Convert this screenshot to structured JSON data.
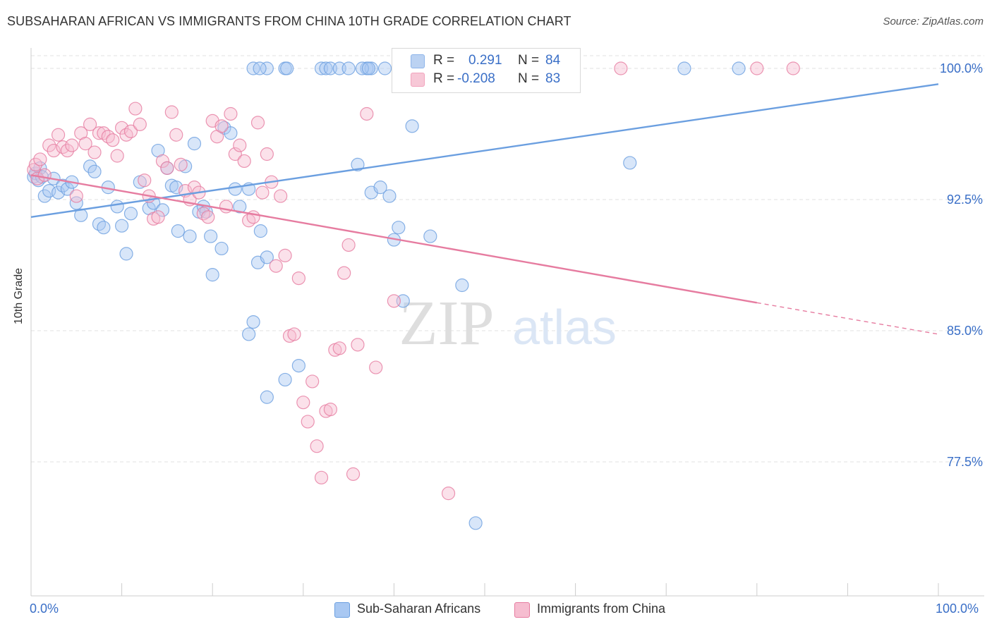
{
  "title": "SUBSAHARAN AFRICAN VS IMMIGRANTS FROM CHINA 10TH GRADE CORRELATION CHART",
  "source": "Source: ZipAtlas.com",
  "watermark": {
    "zip": "ZIP",
    "atlas": "atlas"
  },
  "legend_top": {
    "r_label": "R =",
    "n_label": "N =",
    "series": [
      {
        "r": "0.291",
        "n": "84",
        "color": "#8db4ea"
      },
      {
        "r": "-0.208",
        "n": "83",
        "color": "#f2a3bd"
      }
    ]
  },
  "chart_data": {
    "type": "scatter",
    "title": "SUBSAHARAN AFRICAN VS IMMIGRANTS FROM CHINA 10TH GRADE CORRELATION CHART",
    "xlabel": "",
    "ylabel": "10th Grade",
    "xlim": [
      0,
      100
    ],
    "ylim": [
      71.2,
      100.8
    ],
    "x_tick_labels": [
      "0.0%",
      "100.0%"
    ],
    "y_ticks": [
      {
        "value": 100.0,
        "label": "100.0%"
      },
      {
        "value": 92.5,
        "label": "92.5%"
      },
      {
        "value": 85.0,
        "label": "85.0%"
      },
      {
        "value": 77.5,
        "label": "77.5%"
      }
    ],
    "grid": true,
    "legend_position": "bottom",
    "series": [
      {
        "name": "Sub-Saharan Africans",
        "color": "#6b9fe0",
        "fill": "#a9c8f2",
        "trend": {
          "x0": 0,
          "y0": 91.5,
          "x1": 100,
          "y1": 99.1
        },
        "points": [
          [
            0.3,
            93.8
          ],
          [
            0.5,
            94.0
          ],
          [
            0.8,
            93.6
          ],
          [
            1.0,
            94.3
          ],
          [
            1.2,
            93.8
          ],
          [
            1.5,
            92.7
          ],
          [
            2.0,
            93.0
          ],
          [
            2.5,
            93.7
          ],
          [
            3.0,
            92.9
          ],
          [
            3.5,
            93.3
          ],
          [
            4.0,
            93.1
          ],
          [
            4.5,
            93.5
          ],
          [
            5.0,
            92.3
          ],
          [
            5.5,
            91.6
          ],
          [
            6.5,
            94.4
          ],
          [
            7.0,
            94.1
          ],
          [
            7.5,
            91.1
          ],
          [
            8.0,
            90.9
          ],
          [
            8.5,
            93.2
          ],
          [
            9.5,
            92.1
          ],
          [
            10.0,
            91.0
          ],
          [
            10.5,
            89.4
          ],
          [
            11.0,
            91.7
          ],
          [
            12.0,
            93.5
          ],
          [
            13.0,
            92.0
          ],
          [
            13.5,
            92.3
          ],
          [
            14.0,
            95.3
          ],
          [
            14.5,
            91.9
          ],
          [
            15.0,
            94.3
          ],
          [
            15.5,
            93.3
          ],
          [
            16.0,
            93.2
          ],
          [
            16.2,
            90.7
          ],
          [
            17.0,
            94.4
          ],
          [
            17.5,
            90.4
          ],
          [
            18.0,
            95.7
          ],
          [
            18.5,
            91.8
          ],
          [
            19.0,
            92.1
          ],
          [
            19.3,
            91.8
          ],
          [
            19.8,
            90.4
          ],
          [
            20.0,
            88.2
          ],
          [
            21.0,
            89.7
          ],
          [
            21.3,
            96.6
          ],
          [
            22.0,
            96.3
          ],
          [
            22.5,
            93.1
          ],
          [
            23.0,
            92.1
          ],
          [
            24.0,
            93.1
          ],
          [
            25.0,
            88.9
          ],
          [
            25.3,
            90.7
          ],
          [
            26.0,
            89.2
          ],
          [
            24.5,
            100.0
          ],
          [
            26.0,
            100.0
          ],
          [
            25.2,
            100.0
          ],
          [
            28.0,
            100.0
          ],
          [
            28.2,
            100.0
          ],
          [
            32.0,
            100.0
          ],
          [
            32.5,
            100.0
          ],
          [
            33.0,
            100.0
          ],
          [
            34.0,
            100.0
          ],
          [
            35.0,
            100.0
          ],
          [
            37.0,
            100.0
          ],
          [
            37.5,
            100.0
          ],
          [
            36.5,
            100.0
          ],
          [
            37.2,
            100.0
          ],
          [
            39.0,
            100.0
          ],
          [
            36.0,
            94.5
          ],
          [
            37.5,
            92.9
          ],
          [
            38.5,
            93.2
          ],
          [
            39.5,
            92.7
          ],
          [
            40.5,
            90.9
          ],
          [
            42.0,
            96.7
          ],
          [
            44.0,
            90.4
          ],
          [
            24.0,
            84.8
          ],
          [
            24.5,
            85.5
          ],
          [
            26.0,
            81.2
          ],
          [
            28.0,
            82.2
          ],
          [
            29.5,
            83.0
          ],
          [
            40.0,
            90.2
          ],
          [
            41.0,
            86.7
          ],
          [
            47.5,
            87.6
          ],
          [
            49.0,
            74.0
          ],
          [
            59.0,
            100.0
          ],
          [
            66.0,
            94.6
          ],
          [
            72.0,
            100.0
          ],
          [
            78.0,
            100.0
          ]
        ]
      },
      {
        "name": "Immigrants from China",
        "color": "#e67ca0",
        "fill": "#f6bdd0",
        "trend": {
          "x0": 0,
          "y0": 93.9,
          "x1": 80,
          "y1": 86.6,
          "dash_to_x": 100,
          "dash_to_y": 84.8
        },
        "points": [
          [
            0.3,
            94.2
          ],
          [
            0.5,
            94.5
          ],
          [
            0.7,
            93.7
          ],
          [
            1.0,
            94.8
          ],
          [
            1.5,
            93.9
          ],
          [
            2.0,
            95.6
          ],
          [
            2.5,
            95.3
          ],
          [
            3.0,
            96.2
          ],
          [
            3.5,
            95.5
          ],
          [
            4.0,
            95.3
          ],
          [
            4.5,
            95.6
          ],
          [
            5.0,
            92.7
          ],
          [
            5.5,
            96.3
          ],
          [
            6.0,
            95.7
          ],
          [
            6.5,
            96.8
          ],
          [
            7.0,
            95.2
          ],
          [
            7.5,
            96.3
          ],
          [
            8.0,
            96.3
          ],
          [
            8.5,
            96.1
          ],
          [
            9.0,
            95.9
          ],
          [
            9.5,
            95.0
          ],
          [
            10.0,
            96.6
          ],
          [
            10.5,
            96.2
          ],
          [
            11.0,
            96.4
          ],
          [
            11.5,
            97.7
          ],
          [
            12.0,
            96.8
          ],
          [
            12.5,
            93.6
          ],
          [
            13.0,
            92.7
          ],
          [
            13.5,
            91.4
          ],
          [
            14.0,
            91.5
          ],
          [
            14.5,
            94.7
          ],
          [
            15.0,
            94.3
          ],
          [
            15.5,
            97.5
          ],
          [
            16.0,
            96.2
          ],
          [
            16.5,
            94.5
          ],
          [
            17.0,
            93.0
          ],
          [
            17.5,
            92.5
          ],
          [
            18.0,
            93.2
          ],
          [
            18.5,
            92.9
          ],
          [
            19.0,
            91.7
          ],
          [
            19.5,
            91.5
          ],
          [
            20.0,
            97.0
          ],
          [
            20.5,
            96.1
          ],
          [
            21.0,
            96.7
          ],
          [
            21.5,
            92.1
          ],
          [
            22.0,
            97.4
          ],
          [
            22.5,
            95.1
          ],
          [
            23.0,
            95.6
          ],
          [
            23.5,
            94.7
          ],
          [
            24.0,
            91.3
          ],
          [
            24.5,
            91.5
          ],
          [
            25.0,
            96.9
          ],
          [
            25.5,
            92.9
          ],
          [
            26.0,
            95.1
          ],
          [
            26.5,
            93.5
          ],
          [
            27.0,
            88.7
          ],
          [
            27.5,
            92.7
          ],
          [
            28.0,
            89.3
          ],
          [
            28.5,
            84.7
          ],
          [
            29.0,
            84.8
          ],
          [
            29.5,
            88.0
          ],
          [
            30.0,
            80.9
          ],
          [
            30.5,
            79.8
          ],
          [
            31.0,
            82.1
          ],
          [
            31.5,
            78.4
          ],
          [
            32.0,
            76.6
          ],
          [
            32.5,
            80.4
          ],
          [
            33.0,
            80.5
          ],
          [
            33.5,
            83.9
          ],
          [
            34.0,
            84.0
          ],
          [
            34.5,
            88.3
          ],
          [
            35.0,
            89.9
          ],
          [
            35.5,
            76.8
          ],
          [
            36.0,
            84.2
          ],
          [
            37.0,
            97.4
          ],
          [
            38.0,
            82.9
          ],
          [
            40.0,
            86.7
          ],
          [
            42.0,
            100.0
          ],
          [
            43.0,
            100.0
          ],
          [
            46.0,
            75.7
          ],
          [
            65.0,
            100.0
          ],
          [
            80.0,
            100.0
          ],
          [
            84.0,
            100.0
          ]
        ]
      }
    ]
  },
  "bottom_legend": [
    {
      "label": "Sub-Saharan Africans",
      "color": "#a9c8f2",
      "border": "#6b9fe0"
    },
    {
      "label": "Immigrants from China",
      "color": "#f6bdd0",
      "border": "#e67ca0"
    }
  ]
}
